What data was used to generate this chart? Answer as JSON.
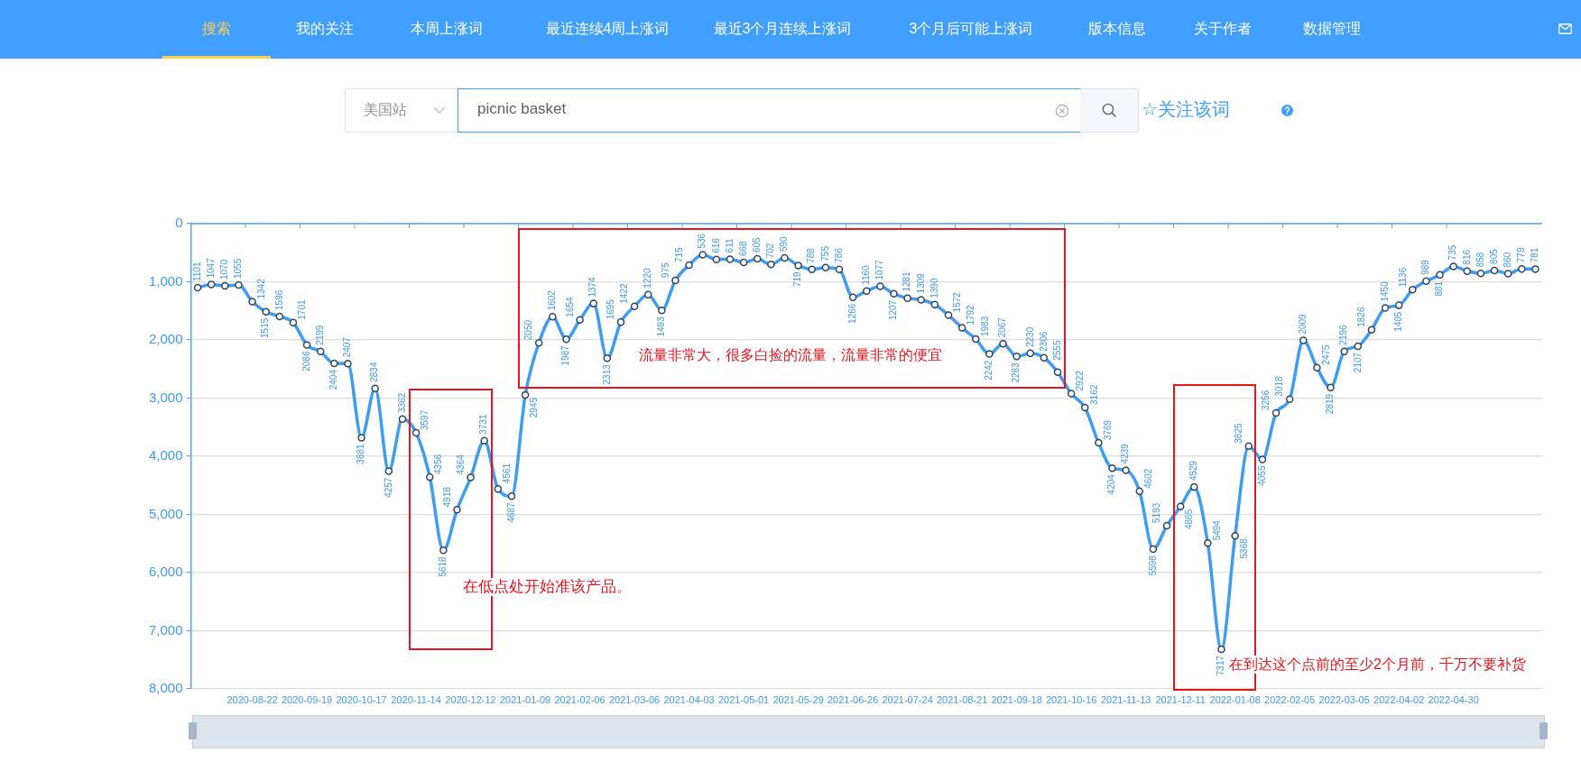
{
  "chart_data": {
    "type": "line",
    "categories": [
      null,
      null,
      null,
      null,
      "2020-08-22",
      null,
      null,
      null,
      "2020-09-19",
      null,
      null,
      null,
      "2020-10-17",
      null,
      null,
      null,
      "2020-11-14",
      null,
      null,
      null,
      "2020-12-12",
      null,
      null,
      null,
      "2021-01-09",
      null,
      null,
      null,
      "2021-02-06",
      null,
      null,
      null,
      "2021-03-06",
      null,
      null,
      null,
      "2021-04-03",
      null,
      null,
      null,
      "2021-05-01",
      null,
      null,
      null,
      "2021-05-29",
      null,
      null,
      null,
      "2021-06-26",
      null,
      null,
      null,
      "2021-07-24",
      null,
      null,
      null,
      "2021-08-21",
      null,
      null,
      null,
      "2021-09-18",
      null,
      null,
      null,
      "2021-10-16",
      null,
      null,
      null,
      "2021-11-13",
      null,
      null,
      null,
      "2021-12-11",
      null,
      null,
      null,
      "2022-01-08",
      null,
      null,
      null,
      "2022-02-05",
      null,
      null,
      null,
      "2022-03-05",
      null,
      null,
      null,
      "2022-04-02",
      null,
      null,
      null,
      "2022-04-30",
      null,
      null,
      null,
      null,
      null,
      null
    ],
    "values": [
      1101,
      1047,
      1070,
      1055,
      1342,
      1515,
      1596,
      1701,
      2086,
      2199,
      2404,
      2407,
      3681,
      2834,
      4257,
      3362,
      3597,
      4356,
      5618,
      4918,
      4364,
      3731,
      4561,
      4687,
      2945,
      2050,
      1602,
      1987,
      1654,
      1374,
      2313,
      1695,
      1422,
      1220,
      1493,
      975,
      715,
      536,
      616,
      611,
      668,
      605,
      702,
      590,
      719,
      788,
      755,
      786,
      1266,
      1160,
      1077,
      1207,
      1281,
      1309,
      1390,
      1572,
      1792,
      1983,
      2242,
      2067,
      2283,
      2230,
      2306,
      2555,
      2922,
      3162,
      3769,
      4204,
      4239,
      4602,
      5598,
      5193,
      4865,
      4529,
      5494,
      7317,
      5368,
      3825,
      4055,
      3256,
      3018,
      2009,
      2475,
      2819,
      2196,
      2107,
      1826,
      1450,
      1405,
      1136,
      989,
      881,
      735,
      816,
      858,
      805,
      860,
      779,
      781
    ],
    "color": "#3d9df2",
    "ylim": [
      8000,
      0
    ],
    "yticks": [
      0,
      {
        "value": 1000,
        "label": "1,000"
      },
      {
        "value": 2000,
        "label": "2,000"
      },
      {
        "value": 3000,
        "label": "3,000"
      },
      {
        "value": 4000,
        "label": "4,000"
      },
      {
        "value": 5000,
        "label": "5,000"
      },
      {
        "value": 6000,
        "label": "6,000"
      },
      {
        "value": 7000,
        "label": "7,000"
      },
      {
        "value": 8000,
        "label": "8,000"
      }
    ],
    "grid": "y",
    "marker": "circle",
    "data_labels": true,
    "annotations": [
      "搜索",
      "我的关注",
      "本周上涨词",
      "最近连续4周上涨词",
      "最近3个月连续上涨词",
      "3个月后可能上涨词",
      "版本信息",
      "关于作者",
      "数据管理",
      "美国站",
      "picnic basket",
      "☆关注该词",
      "流量非常大，很多白捡的流量，流量非常的便宜",
      "在低点处开始准该产品。",
      "在到达这个点前的至少2个月前，千万不要补货"
    ]
  }
}
